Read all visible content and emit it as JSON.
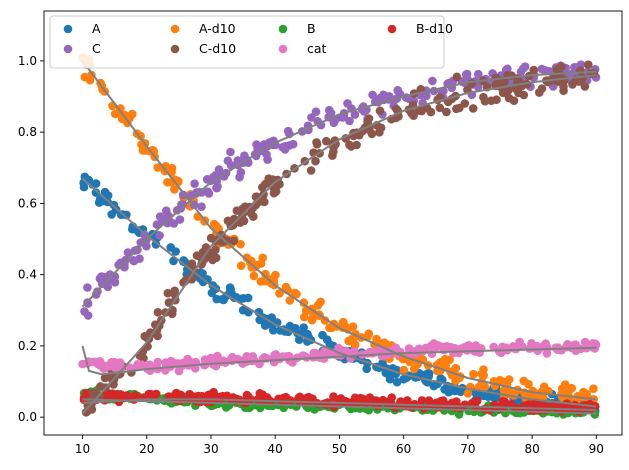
{
  "chart_data": {
    "type": "scatter",
    "title": "",
    "xlabel": "",
    "ylabel": "",
    "xlim": [
      4,
      94
    ],
    "ylim": [
      -0.05,
      1.14
    ],
    "x_ticks": [
      10,
      20,
      30,
      40,
      50,
      60,
      70,
      80,
      90
    ],
    "y_ticks": [
      0.0,
      0.2,
      0.4,
      0.6,
      0.8,
      1.0
    ],
    "grid": false,
    "legend_position": "upper-left",
    "legend_columns": 4,
    "series": [
      {
        "name": "A",
        "color": "#1f77b4",
        "x": [
          10,
          20,
          30,
          40,
          50,
          60,
          70,
          80,
          90
        ],
        "y": [
          0.67,
          0.51,
          0.37,
          0.26,
          0.18,
          0.12,
          0.08,
          0.05,
          0.03
        ]
      },
      {
        "name": "A-d10",
        "color": "#ff7f0e",
        "x": [
          10,
          20,
          30,
          40,
          50,
          60,
          70,
          80,
          90
        ],
        "y": [
          1.0,
          0.76,
          0.53,
          0.37,
          0.25,
          0.17,
          0.11,
          0.07,
          0.05
        ]
      },
      {
        "name": "B",
        "color": "#2ca02c",
        "x": [
          10,
          20,
          30,
          40,
          50,
          60,
          70,
          80,
          90
        ],
        "y": [
          0.065,
          0.05,
          0.04,
          0.035,
          0.03,
          0.025,
          0.02,
          0.02,
          0.015
        ]
      },
      {
        "name": "B-d10",
        "color": "#d62728",
        "x": [
          10,
          20,
          30,
          40,
          50,
          60,
          70,
          80,
          90
        ],
        "y": [
          0.055,
          0.06,
          0.055,
          0.05,
          0.045,
          0.04,
          0.035,
          0.03,
          0.025
        ]
      },
      {
        "name": "C",
        "color": "#9467bd",
        "x": [
          10,
          20,
          30,
          40,
          50,
          60,
          70,
          80,
          90
        ],
        "y": [
          0.31,
          0.5,
          0.66,
          0.77,
          0.85,
          0.9,
          0.94,
          0.96,
          0.97
        ]
      },
      {
        "name": "C-d10",
        "color": "#8c564b",
        "x": [
          10,
          20,
          30,
          40,
          50,
          60,
          70,
          80,
          90
        ],
        "y": [
          0.01,
          0.21,
          0.48,
          0.66,
          0.78,
          0.86,
          0.91,
          0.94,
          0.96
        ]
      },
      {
        "name": "cat",
        "color": "#e377c2",
        "x": [
          10,
          20,
          30,
          40,
          50,
          60,
          70,
          80,
          90
        ],
        "y": [
          0.15,
          0.14,
          0.155,
          0.165,
          0.175,
          0.185,
          0.19,
          0.195,
          0.2
        ]
      }
    ],
    "fit_curves": {
      "color": "#808080",
      "curves": [
        {
          "x": [
            10,
            20,
            30,
            40,
            50,
            60,
            70,
            80,
            90
          ],
          "y": [
            0.67,
            0.51,
            0.37,
            0.26,
            0.18,
            0.12,
            0.08,
            0.05,
            0.03
          ]
        },
        {
          "x": [
            10,
            20,
            30,
            40,
            50,
            60,
            70,
            80,
            90
          ],
          "y": [
            1.0,
            0.76,
            0.53,
            0.37,
            0.25,
            0.17,
            0.11,
            0.07,
            0.05
          ]
        },
        {
          "x": [
            10,
            20,
            30,
            40,
            50,
            60,
            70,
            80,
            90
          ],
          "y": [
            0.05,
            0.045,
            0.04,
            0.035,
            0.03,
            0.025,
            0.02,
            0.015,
            0.01
          ]
        },
        {
          "x": [
            10,
            20,
            30,
            40,
            50,
            60,
            70,
            80,
            90
          ],
          "y": [
            0.04,
            0.05,
            0.05,
            0.045,
            0.04,
            0.035,
            0.03,
            0.025,
            0.02
          ]
        },
        {
          "x": [
            10,
            20,
            30,
            40,
            50,
            60,
            70,
            80,
            90
          ],
          "y": [
            0.31,
            0.5,
            0.66,
            0.77,
            0.85,
            0.9,
            0.94,
            0.96,
            0.97
          ]
        },
        {
          "x": [
            10,
            20,
            30,
            40,
            50,
            60,
            70,
            80,
            90
          ],
          "y": [
            0.01,
            0.21,
            0.48,
            0.66,
            0.78,
            0.86,
            0.91,
            0.94,
            0.96
          ]
        },
        {
          "x": [
            10,
            11,
            13,
            20,
            30,
            40,
            50,
            60,
            70,
            80,
            90
          ],
          "y": [
            0.2,
            0.13,
            0.12,
            0.135,
            0.15,
            0.16,
            0.17,
            0.18,
            0.185,
            0.19,
            0.195
          ]
        }
      ]
    }
  }
}
